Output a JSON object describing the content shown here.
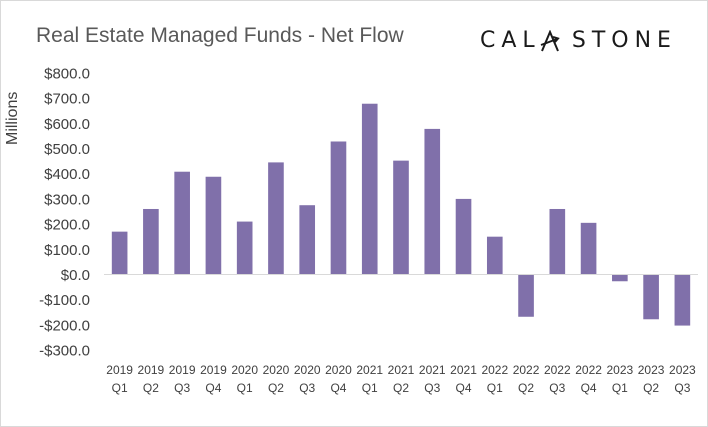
{
  "chart_data": {
    "type": "bar",
    "title": "Real Estate Managed Funds - Net Flow",
    "brand": "CALASTONE",
    "xlabel": "",
    "ylabel": "Millions",
    "ylim": [
      -300,
      800
    ],
    "y_ticks": [
      800,
      700,
      600,
      500,
      400,
      300,
      200,
      100,
      0,
      -100,
      -200,
      -300
    ],
    "y_tick_labels": [
      "$800.0",
      "$700.0",
      "$600.0",
      "$500.0",
      "$400.0",
      "$300.0",
      "$200.0",
      "$100.0",
      "$0.0",
      "-$100.0",
      "-$200.0",
      "-$300.0"
    ],
    "grid": false,
    "legend": "none",
    "bar_color": "#8070aa",
    "categories": [
      {
        "year": "2019",
        "quarter": "Q1"
      },
      {
        "year": "2019",
        "quarter": "Q2"
      },
      {
        "year": "2019",
        "quarter": "Q3"
      },
      {
        "year": "2019",
        "quarter": "Q4"
      },
      {
        "year": "2020",
        "quarter": "Q1"
      },
      {
        "year": "2020",
        "quarter": "Q2"
      },
      {
        "year": "2020",
        "quarter": "Q3"
      },
      {
        "year": "2020",
        "quarter": "Q4"
      },
      {
        "year": "2021",
        "quarter": "Q1"
      },
      {
        "year": "2021",
        "quarter": "Q2"
      },
      {
        "year": "2021",
        "quarter": "Q3"
      },
      {
        "year": "2021",
        "quarter": "Q4"
      },
      {
        "year": "2022",
        "quarter": "Q1"
      },
      {
        "year": "2022",
        "quarter": "Q2"
      },
      {
        "year": "2022",
        "quarter": "Q3"
      },
      {
        "year": "2022",
        "quarter": "Q4"
      },
      {
        "year": "2023",
        "quarter": "Q1"
      },
      {
        "year": "2023",
        "quarter": "Q2"
      },
      {
        "year": "2023",
        "quarter": "Q3"
      }
    ],
    "values": [
      170,
      260,
      408,
      388,
      210,
      445,
      275,
      528,
      678,
      452,
      578,
      300,
      150,
      -168,
      260,
      205,
      -27,
      -178,
      -203
    ]
  }
}
